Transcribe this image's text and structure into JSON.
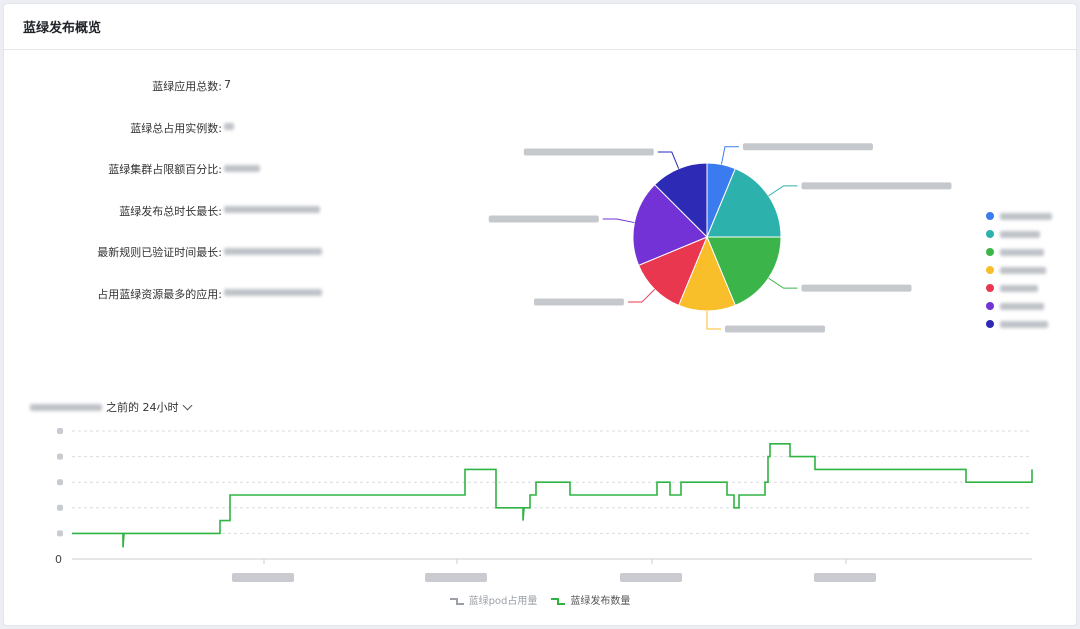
{
  "panel": {
    "title": "蓝绿发布概览"
  },
  "stats": [
    {
      "label": "蓝绿应用总数:",
      "value": "7"
    },
    {
      "label": "蓝绿总占用实例数:",
      "value": ""
    },
    {
      "label": "蓝绿集群占限额百分比:",
      "value": ""
    },
    {
      "label": "蓝绿发布总时长最长:",
      "value": ""
    },
    {
      "label": "最新规则已验证时间最长:",
      "value": ""
    },
    {
      "label": "占用蓝绿资源最多的应用:",
      "value": ""
    }
  ],
  "time_range": {
    "label": "之前的 24小时"
  },
  "colors": {
    "slices": [
      "#3b7bf0",
      "#2cb1ac",
      "#3bb54a",
      "#f8bf2a",
      "#e8374f",
      "#7232d6",
      "#2d2ab5"
    ],
    "pod_series": "#9aa0a6",
    "release_series": "#2fb343"
  },
  "chart_data": [
    {
      "type": "pie",
      "values": [
        1,
        3,
        3,
        2,
        2,
        3,
        2
      ],
      "legend_position": "right"
    },
    {
      "type": "line",
      "step": true,
      "y_tick_labels": [
        "0"
      ],
      "series": [
        {
          "name": "蓝绿pod占用量",
          "values": []
        },
        {
          "name": "蓝绿发布数量",
          "points": [
            [
              0,
              1
            ],
            [
              51,
              1
            ],
            [
              51,
              0.45
            ],
            [
              52,
              1
            ],
            [
              148,
              1
            ],
            [
              148,
              1.5
            ],
            [
              158,
              1.5
            ],
            [
              158,
              2.5
            ],
            [
              393,
              2.5
            ],
            [
              393,
              3.5
            ],
            [
              424,
              3.5
            ],
            [
              424,
              2
            ],
            [
              451,
              2
            ],
            [
              451,
              1.5
            ],
            [
              452,
              2
            ],
            [
              458,
              2
            ],
            [
              458,
              2.5
            ],
            [
              464,
              2.5
            ],
            [
              464,
              3
            ],
            [
              498,
              3
            ],
            [
              498,
              2.5
            ],
            [
              585,
              2.5
            ],
            [
              585,
              3
            ],
            [
              598,
              3
            ],
            [
              598,
              2.5
            ],
            [
              609,
              2.5
            ],
            [
              609,
              3
            ],
            [
              655,
              3
            ],
            [
              655,
              2.5
            ],
            [
              662,
              2.5
            ],
            [
              662,
              2
            ],
            [
              667,
              2
            ],
            [
              667,
              2.5
            ],
            [
              693,
              2.5
            ],
            [
              693,
              3
            ],
            [
              696,
              3
            ],
            [
              696,
              4
            ],
            [
              698,
              4
            ],
            [
              698,
              4.5
            ],
            [
              718,
              4.5
            ],
            [
              718,
              4
            ],
            [
              743,
              4
            ],
            [
              743,
              3.5
            ],
            [
              894,
              3.5
            ],
            [
              894,
              3
            ],
            [
              960,
              3
            ],
            [
              960,
              3.5
            ]
          ]
        }
      ],
      "ylim": [
        0,
        5
      ],
      "grid": true,
      "legend_position": "bottom"
    }
  ]
}
